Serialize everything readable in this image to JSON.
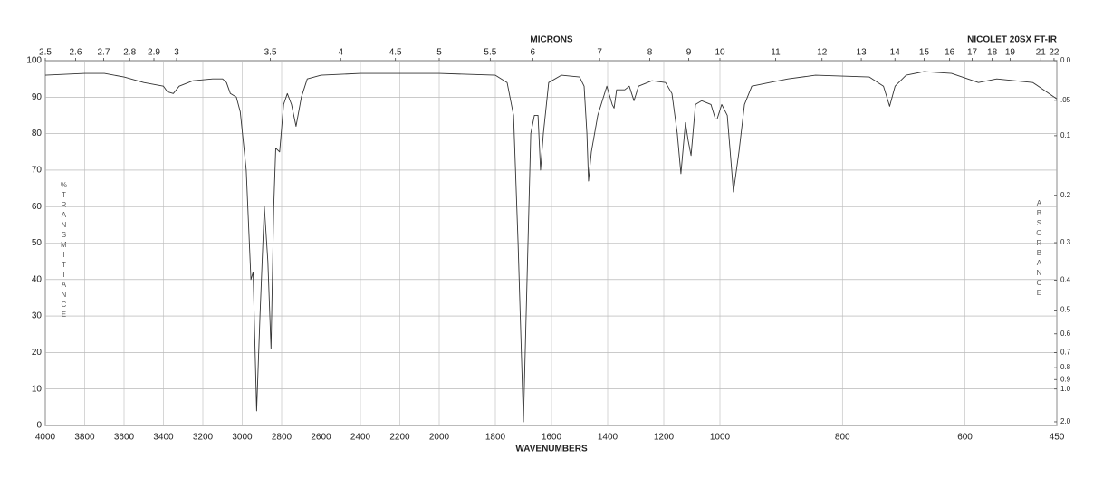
{
  "chart_data": {
    "type": "line",
    "title": "MICRONS",
    "instrument": "NICOLET 20SX FT-IR",
    "x_label": "WAVENUMBERS",
    "y_label": "%TRANSMITTANCE",
    "y2_label": "ABSORBANCE",
    "color": "#333333",
    "grid": true,
    "xlim": [
      4000,
      450
    ],
    "xscale_breaks": [
      2000,
      1000
    ],
    "xticks": [
      4000,
      3800,
      3600,
      3400,
      3200,
      3000,
      2800,
      2600,
      2400,
      2200,
      2000,
      1800,
      1600,
      1400,
      1200,
      1000,
      800,
      600,
      450
    ],
    "x2_transform": "microns",
    "x2ticks": [
      2.5,
      2.6,
      2.7,
      2.8,
      2.9,
      3,
      3.5,
      4,
      4.5,
      5,
      5.5,
      6,
      7,
      8,
      9,
      10,
      11,
      12,
      13,
      14,
      15,
      16,
      17,
      18,
      19,
      21,
      22
    ],
    "ylim": [
      0,
      100
    ],
    "yticks": [
      0,
      10,
      20,
      30,
      40,
      50,
      60,
      70,
      80,
      90,
      100
    ],
    "y2_transform": "absorbance",
    "y2ticks": [
      {
        "value": 0,
        "label": "0.0"
      },
      {
        "value": 0.05,
        "label": ".05"
      },
      0.1,
      0.2,
      0.3,
      0.4,
      0.5,
      0.6,
      0.7,
      0.8,
      0.9,
      {
        "value": 1,
        "label": "1.0"
      },
      {
        "value": 2,
        "label": "2.0"
      }
    ],
    "x": [
      4000,
      3800,
      3700,
      3600,
      3500,
      3400,
      3380,
      3350,
      3320,
      3250,
      3150,
      3100,
      3080,
      3060,
      3030,
      3010,
      2980,
      2956,
      2945,
      2927,
      2910,
      2888,
      2870,
      2854,
      2840,
      2830,
      2810,
      2790,
      2771,
      2750,
      2727,
      2700,
      2670,
      2600,
      2400,
      2000,
      1800,
      1758,
      1735,
      1719,
      1700,
      1687,
      1674,
      1661,
      1648,
      1639,
      1629,
      1610,
      1565,
      1500,
      1484,
      1474,
      1468,
      1458,
      1435,
      1403,
      1384,
      1377,
      1368,
      1339,
      1323,
      1306,
      1290,
      1242,
      1194,
      1171,
      1152,
      1139,
      1123,
      1113,
      1103,
      1087,
      1065,
      1032,
      1016,
      1010,
      997,
      988,
      978,
      969,
      960,
      948,
      919,
      889,
      844,
      756,
      733,
      723,
      714,
      696,
      667,
      622,
      578,
      548,
      489,
      450
    ],
    "values": [
      96,
      96.5,
      96.5,
      95.5,
      94,
      93,
      91.5,
      91,
      93,
      94.5,
      95,
      95,
      94,
      91,
      90,
      86,
      70,
      40,
      42,
      4,
      30,
      60,
      45,
      21,
      60,
      76,
      75,
      88,
      91,
      88,
      82,
      90,
      95,
      96,
      96.5,
      96.5,
      96,
      94,
      85,
      50,
      1,
      40,
      80,
      85,
      85,
      70,
      80,
      94,
      96,
      95.5,
      93,
      80,
      67,
      75,
      85,
      93,
      88,
      87,
      92,
      92,
      93,
      89,
      93,
      94.5,
      94,
      91,
      80,
      69,
      83,
      78,
      74,
      88,
      89,
      88,
      84,
      84,
      88,
      85,
      64,
      75,
      88,
      93,
      94,
      95,
      96,
      95.5,
      93,
      87.5,
      93,
      96,
      97,
      96.5,
      94,
      95,
      94,
      89.5
    ]
  }
}
